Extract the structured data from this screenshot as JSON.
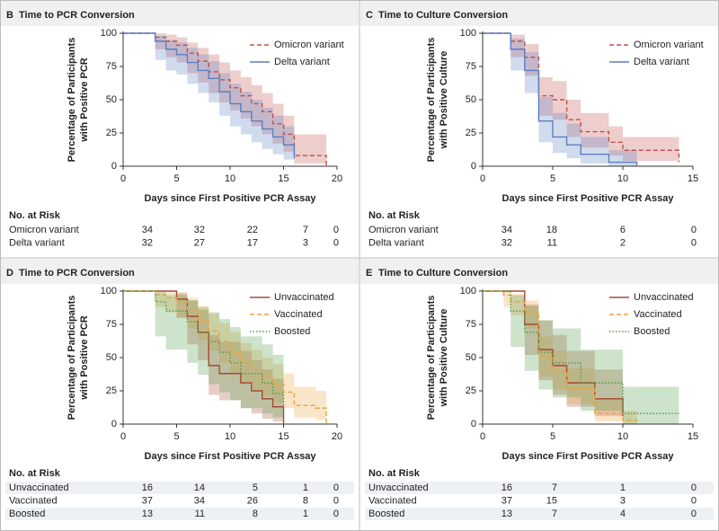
{
  "chart_data": [
    {
      "type": "step",
      "panel": "B",
      "title": "Time to PCR Conversion",
      "xlabel": "Days since First Positive PCR Assay",
      "ylabel": [
        "Percentage of Participants",
        "with Positive PCR"
      ],
      "xlim": [
        0,
        20
      ],
      "ylim": [
        0,
        100
      ],
      "xticks": [
        0,
        5,
        10,
        15,
        20
      ],
      "yticks": [
        0,
        25,
        50,
        75,
        100
      ],
      "legend": "upper right",
      "series": [
        {
          "name": "Omicron variant",
          "color": "#c0504d",
          "dash": "dashed",
          "x": [
            0,
            3,
            4,
            5,
            6,
            7,
            8,
            9,
            10,
            11,
            12,
            13,
            14,
            15,
            16,
            19
          ],
          "values": [
            100,
            97,
            94,
            91,
            85,
            79,
            71,
            65,
            59,
            53,
            47,
            41,
            32,
            24,
            8,
            0
          ],
          "ci_lower": [
            100,
            88,
            82,
            78,
            70,
            63,
            55,
            48,
            42,
            36,
            30,
            24,
            17,
            11,
            2,
            0
          ],
          "ci_upper": [
            100,
            100,
            99,
            97,
            93,
            89,
            84,
            78,
            72,
            67,
            61,
            55,
            47,
            38,
            24,
            0
          ]
        },
        {
          "name": "Delta variant",
          "color": "#5b7ec2",
          "dash": "solid",
          "x": [
            0,
            3,
            4,
            5,
            6,
            7,
            8,
            9,
            10,
            11,
            12,
            13,
            14,
            15,
            16
          ],
          "values": [
            100,
            94,
            88,
            84,
            78,
            72,
            66,
            56,
            47,
            41,
            34,
            28,
            22,
            16,
            6
          ],
          "ci_lower": [
            100,
            80,
            72,
            69,
            62,
            55,
            48,
            38,
            30,
            24,
            18,
            13,
            9,
            5,
            1
          ],
          "ci_upper": [
            100,
            98,
            95,
            93,
            89,
            84,
            79,
            70,
            62,
            56,
            50,
            44,
            38,
            30,
            18
          ]
        }
      ],
      "risk_table": {
        "title": "No. at Risk",
        "rows": [
          {
            "label": "Omicron variant",
            "counts": [
              34,
              32,
              22,
              7,
              0
            ]
          },
          {
            "label": "Delta variant",
            "counts": [
              32,
              27,
              17,
              3,
              0
            ]
          }
        ]
      }
    },
    {
      "type": "step",
      "panel": "C",
      "title": "Time to Culture Conversion",
      "xlabel": "Days since First Positive PCR Assay",
      "ylabel": [
        "Percentage of Participants",
        "with Positive Culture"
      ],
      "xlim": [
        0,
        15
      ],
      "ylim": [
        0,
        100
      ],
      "xticks": [
        0,
        5,
        10,
        15
      ],
      "yticks": [
        0,
        25,
        50,
        75,
        100
      ],
      "legend": "upper right",
      "series": [
        {
          "name": "Omicron variant",
          "color": "#c0504d",
          "dash": "dashed",
          "x": [
            0,
            2,
            3,
            4,
            5,
            6,
            7,
            9,
            10,
            14
          ],
          "values": [
            100,
            94,
            82,
            53,
            50,
            35,
            26,
            18,
            12,
            3
          ],
          "ci_lower": [
            100,
            82,
            68,
            38,
            35,
            22,
            14,
            8,
            4,
            0
          ],
          "ci_upper": [
            100,
            99,
            92,
            67,
            64,
            50,
            40,
            30,
            22,
            12
          ]
        },
        {
          "name": "Delta variant",
          "color": "#5b7ec2",
          "dash": "solid",
          "x": [
            0,
            2,
            3,
            4,
            5,
            6,
            7,
            9,
            11
          ],
          "values": [
            100,
            88,
            72,
            34,
            22,
            16,
            9,
            3,
            0
          ],
          "ci_lower": [
            100,
            72,
            55,
            18,
            10,
            6,
            2,
            0,
            0
          ],
          "ci_upper": [
            100,
            96,
            86,
            52,
            40,
            32,
            22,
            12,
            0
          ]
        }
      ],
      "risk_table": {
        "title": "No. at Risk",
        "rows": [
          {
            "label": "Omicron variant",
            "counts": [
              34,
              18,
              6,
              0
            ]
          },
          {
            "label": "Delta variant",
            "counts": [
              32,
              11,
              2,
              0
            ]
          }
        ]
      }
    },
    {
      "type": "step",
      "panel": "D",
      "title": "Time to PCR Conversion",
      "xlabel": "Days since First Positive PCR Assay",
      "ylabel": [
        "Percentage of Participants",
        "with Positive PCR"
      ],
      "xlim": [
        0,
        20
      ],
      "ylim": [
        0,
        100
      ],
      "xticks": [
        0,
        5,
        10,
        15,
        20
      ],
      "yticks": [
        0,
        25,
        50,
        75,
        100
      ],
      "legend": "upper right",
      "series": [
        {
          "name": "Unvaccinated",
          "color": "#a84a32",
          "dash": "solid",
          "x": [
            0,
            5,
            6,
            7,
            8,
            9,
            11,
            12,
            13,
            14,
            15
          ],
          "values": [
            100,
            94,
            81,
            69,
            44,
            38,
            31,
            25,
            19,
            13,
            0
          ],
          "ci_lower": [
            100,
            80,
            60,
            48,
            22,
            18,
            12,
            8,
            4,
            2,
            0
          ],
          "ci_upper": [
            100,
            99,
            93,
            86,
            67,
            62,
            55,
            48,
            41,
            34,
            0
          ]
        },
        {
          "name": "Vaccinated",
          "color": "#e8a33c",
          "dash": "dashed",
          "x": [
            0,
            3,
            4,
            5,
            6,
            7,
            8,
            9,
            10,
            11,
            12,
            13,
            14,
            15,
            16,
            18,
            19
          ],
          "values": [
            100,
            97,
            95,
            92,
            86,
            78,
            70,
            62,
            54,
            46,
            41,
            35,
            30,
            24,
            14,
            12,
            0
          ],
          "ci_lower": [
            100,
            88,
            84,
            80,
            72,
            63,
            55,
            46,
            38,
            31,
            26,
            21,
            16,
            12,
            5,
            3,
            0
          ],
          "ci_upper": [
            100,
            100,
            99,
            98,
            95,
            89,
            83,
            76,
            69,
            61,
            56,
            50,
            45,
            38,
            28,
            25,
            0
          ]
        },
        {
          "name": "Boosted",
          "color": "#4f9a45",
          "dash": "dotted",
          "x": [
            0,
            3,
            4,
            6,
            7,
            8,
            9,
            10,
            11,
            13,
            14,
            15
          ],
          "values": [
            100,
            92,
            85,
            77,
            69,
            62,
            54,
            46,
            38,
            31,
            23,
            8
          ],
          "ci_lower": [
            100,
            66,
            56,
            46,
            37,
            30,
            24,
            18,
            12,
            8,
            5,
            0
          ],
          "ci_upper": [
            100,
            99,
            97,
            93,
            88,
            84,
            79,
            73,
            66,
            60,
            52,
            33
          ]
        }
      ],
      "risk_table": {
        "title": "No. at Risk",
        "rows": [
          {
            "label": "Unvaccinated",
            "counts": [
              16,
              14,
              5,
              1,
              0
            ]
          },
          {
            "label": "Vaccinated",
            "counts": [
              37,
              34,
              26,
              8,
              0
            ]
          },
          {
            "label": "Boosted",
            "counts": [
              13,
              11,
              8,
              1,
              0
            ]
          }
        ]
      }
    },
    {
      "type": "step",
      "panel": "E",
      "title": "Time to Culture Conversion",
      "xlabel": "Days since First Positive PCR Assay",
      "ylabel": [
        "Percentage of Participants",
        "with Positive Culture"
      ],
      "xlim": [
        0,
        15
      ],
      "ylim": [
        0,
        100
      ],
      "xticks": [
        0,
        5,
        10,
        15
      ],
      "yticks": [
        0,
        25,
        50,
        75,
        100
      ],
      "legend": "upper right",
      "series": [
        {
          "name": "Unvaccinated",
          "color": "#a84a32",
          "dash": "solid",
          "x": [
            0,
            3,
            4,
            5,
            6,
            8,
            10
          ],
          "values": [
            100,
            75,
            56,
            44,
            31,
            19,
            6
          ],
          "ci_lower": [
            100,
            52,
            33,
            22,
            13,
            6,
            0
          ],
          "ci_upper": [
            100,
            90,
            78,
            67,
            55,
            41,
            22
          ]
        },
        {
          "name": "Vaccinated",
          "color": "#e8a33c",
          "dash": "dashed",
          "x": [
            0,
            1.5,
            2,
            3,
            4,
            5,
            6,
            8,
            10,
            11
          ],
          "values": [
            100,
            97,
            92,
            84,
            51,
            40,
            27,
            8,
            3,
            0
          ],
          "ci_lower": [
            100,
            88,
            82,
            72,
            36,
            26,
            15,
            2,
            0,
            0
          ],
          "ci_upper": [
            100,
            100,
            98,
            93,
            66,
            55,
            42,
            18,
            10,
            0
          ]
        },
        {
          "name": "Boosted",
          "color": "#4f9a45",
          "dash": "dotted",
          "x": [
            0,
            2,
            3,
            4,
            5,
            7,
            10,
            14
          ],
          "values": [
            100,
            85,
            69,
            54,
            46,
            31,
            8,
            8
          ],
          "ci_lower": [
            100,
            58,
            40,
            26,
            20,
            10,
            0,
            0
          ],
          "ci_upper": [
            100,
            97,
            89,
            78,
            72,
            56,
            28,
            28
          ]
        }
      ],
      "risk_table": {
        "title": "No. at Risk",
        "rows": [
          {
            "label": "Unvaccinated",
            "counts": [
              16,
              7,
              1,
              0
            ]
          },
          {
            "label": "Vaccinated",
            "counts": [
              37,
              15,
              3,
              0
            ]
          },
          {
            "label": "Boosted",
            "counts": [
              13,
              7,
              4,
              0
            ]
          }
        ]
      }
    }
  ]
}
